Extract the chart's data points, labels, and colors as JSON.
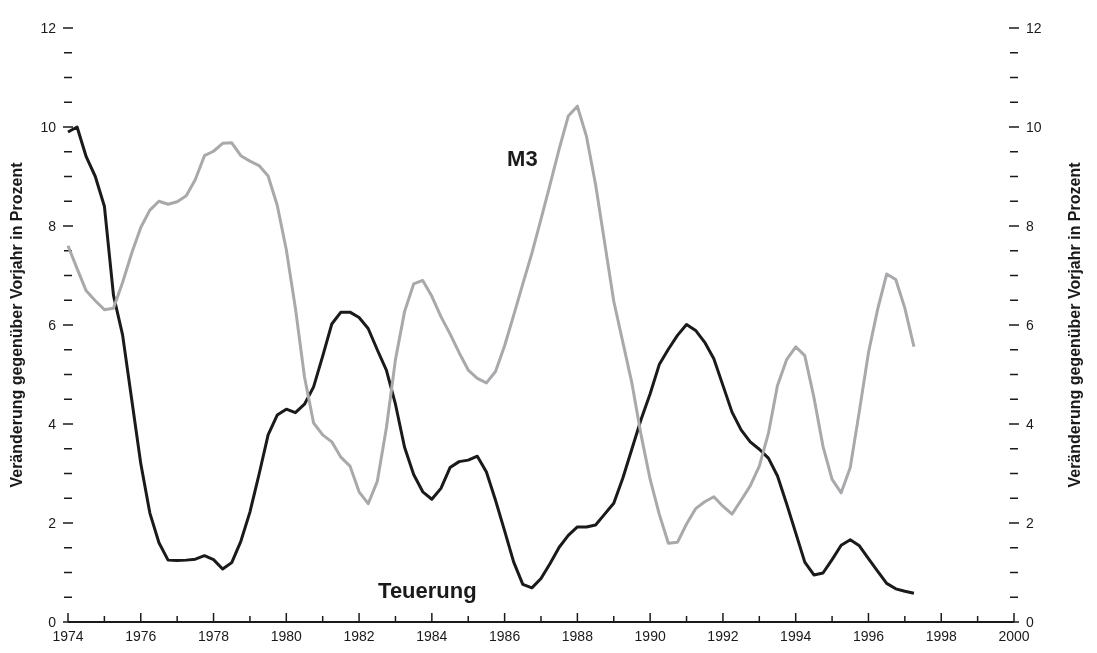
{
  "chart_data": {
    "type": "line",
    "ylabel": "Veränderung gegenüber Vorjahr in Prozent",
    "y2label": "Veränderung gegenüber Vorjahr in Prozent",
    "x": [
      1974,
      1974.25,
      1974.5,
      1974.75,
      1975,
      1975.25,
      1975.5,
      1975.75,
      1976,
      1976.25,
      1976.5,
      1976.75,
      1977,
      1977.25,
      1977.5,
      1977.75,
      1978,
      1978.25,
      1978.5,
      1978.75,
      1979,
      1979.25,
      1979.5,
      1979.75,
      1980,
      1980.25,
      1980.5,
      1980.75,
      1981,
      1981.25,
      1981.5,
      1981.75,
      1982,
      1982.25,
      1982.5,
      1982.75,
      1983,
      1983.25,
      1983.5,
      1983.75,
      1984,
      1984.25,
      1984.5,
      1984.75,
      1985,
      1985.25,
      1985.5,
      1985.75,
      1986,
      1986.25,
      1986.5,
      1986.75,
      1987,
      1987.25,
      1987.5,
      1987.75,
      1988,
      1988.25,
      1988.5,
      1988.75,
      1989,
      1989.25,
      1989.5,
      1989.75,
      1990,
      1990.25,
      1990.5,
      1990.75,
      1991,
      1991.25,
      1991.5,
      1991.75,
      1992,
      1992.25,
      1992.5,
      1992.75,
      1993,
      1993.25,
      1993.5,
      1993.75,
      1994,
      1994.25,
      1994.5,
      1994.75,
      1995,
      1995.25,
      1995.5,
      1995.75,
      1996,
      1996.25,
      1996.5,
      1996.75,
      1997,
      1997.25
    ],
    "series": [
      {
        "name": "Teuerung",
        "color": "#1a1a1a",
        "values": [
          9.9,
          10.0,
          9.4,
          9.0,
          8.4,
          6.6,
          5.8,
          4.5,
          3.2,
          2.2,
          1.6,
          1.25,
          1.24,
          1.25,
          1.27,
          1.34,
          1.26,
          1.07,
          1.2,
          1.63,
          2.22,
          2.98,
          3.78,
          4.18,
          4.3,
          4.23,
          4.4,
          4.75,
          5.37,
          6.02,
          6.26,
          6.26,
          6.15,
          5.93,
          5.5,
          5.09,
          4.4,
          3.53,
          2.98,
          2.63,
          2.48,
          2.7,
          3.12,
          3.24,
          3.27,
          3.35,
          3.03,
          2.46,
          1.84,
          1.21,
          0.76,
          0.69,
          0.88,
          1.18,
          1.51,
          1.75,
          1.92,
          1.92,
          1.96,
          2.18,
          2.4,
          2.91,
          3.5,
          4.09,
          4.61,
          5.2,
          5.51,
          5.79,
          6.01,
          5.89,
          5.65,
          5.32,
          4.78,
          4.24,
          3.88,
          3.64,
          3.49,
          3.31,
          2.95,
          2.39,
          1.8,
          1.21,
          0.95,
          0.99,
          1.26,
          1.55,
          1.66,
          1.54,
          1.28,
          1.03,
          0.78,
          0.67,
          0.62,
          0.58
        ]
      },
      {
        "name": "M3",
        "color": "#a7a9ac",
        "values": [
          7.6,
          7.14,
          6.69,
          6.49,
          6.31,
          6.34,
          6.86,
          7.45,
          7.97,
          8.32,
          8.5,
          8.44,
          8.49,
          8.61,
          8.94,
          9.42,
          9.51,
          9.67,
          9.68,
          9.42,
          9.31,
          9.22,
          9.01,
          8.42,
          7.52,
          6.34,
          4.95,
          4.02,
          3.78,
          3.64,
          3.33,
          3.15,
          2.63,
          2.39,
          2.84,
          3.92,
          5.3,
          6.27,
          6.83,
          6.9,
          6.58,
          6.17,
          5.82,
          5.44,
          5.09,
          4.92,
          4.83,
          5.06,
          5.58,
          6.2,
          6.83,
          7.45,
          8.14,
          8.84,
          9.56,
          10.22,
          10.42,
          9.81,
          8.84,
          7.66,
          6.48,
          5.65,
          4.82,
          3.78,
          2.88,
          2.18,
          1.59,
          1.61,
          1.98,
          2.29,
          2.43,
          2.53,
          2.34,
          2.18,
          2.46,
          2.75,
          3.15,
          3.81,
          4.78,
          5.3,
          5.56,
          5.38,
          4.54,
          3.55,
          2.88,
          2.61,
          3.12,
          4.26,
          5.44,
          6.31,
          7.03,
          6.92,
          6.34,
          5.56
        ]
      }
    ],
    "xlim": [
      1974,
      2000
    ],
    "xticks": [
      1974,
      {
        "value": 1975,
        "label": null
      },
      1976,
      {
        "value": 1977,
        "label": null
      },
      1978,
      {
        "value": 1979,
        "label": null
      },
      1980,
      {
        "value": 1981,
        "label": null
      },
      1982,
      {
        "value": 1983,
        "label": null
      },
      1984,
      {
        "value": 1985,
        "label": null
      },
      1986,
      {
        "value": 1987,
        "label": null
      },
      1988,
      {
        "value": 1989,
        "label": null
      },
      1990,
      {
        "value": 1991,
        "label": null
      },
      1992,
      {
        "value": 1993,
        "label": null
      },
      1994,
      {
        "value": 1995,
        "label": null
      },
      1996,
      {
        "value": 1997,
        "label": null
      },
      1998,
      {
        "value": 1999,
        "label": null
      },
      2000
    ],
    "ylim": [
      0,
      12
    ],
    "yticks": [
      0,
      {
        "value": 0.5,
        "label": null
      },
      {
        "value": 1,
        "label": null
      },
      {
        "value": 1.5,
        "label": null
      },
      2,
      {
        "value": 2.5,
        "label": null
      },
      {
        "value": 3,
        "label": null
      },
      {
        "value": 3.5,
        "label": null
      },
      4,
      {
        "value": 4.5,
        "label": null
      },
      {
        "value": 5,
        "label": null
      },
      {
        "value": 5.5,
        "label": null
      },
      6,
      {
        "value": 6.5,
        "label": null
      },
      {
        "value": 7,
        "label": null
      },
      {
        "value": 7.5,
        "label": null
      },
      8,
      {
        "value": 8.5,
        "label": null
      },
      {
        "value": 9,
        "label": null
      },
      {
        "value": 9.5,
        "label": null
      },
      10,
      {
        "value": 10.5,
        "label": null
      },
      {
        "value": 11,
        "label": null
      },
      {
        "value": 11.5,
        "label": null
      },
      12
    ],
    "y2lim": [
      0,
      12
    ],
    "y2ticks": [
      0,
      {
        "value": 0.5,
        "label": null
      },
      {
        "value": 1,
        "label": null
      },
      {
        "value": 1.5,
        "label": null
      },
      2,
      {
        "value": 2.5,
        "label": null
      },
      {
        "value": 3,
        "label": null
      },
      {
        "value": 3.5,
        "label": null
      },
      4,
      {
        "value": 4.5,
        "label": null
      },
      {
        "value": 5,
        "label": null
      },
      {
        "value": 5.5,
        "label": null
      },
      6,
      {
        "value": 6.5,
        "label": null
      },
      {
        "value": 7,
        "label": null
      },
      {
        "value": 7.5,
        "label": null
      },
      8,
      {
        "value": 8.5,
        "label": null
      },
      {
        "value": 9,
        "label": null
      },
      {
        "value": 9.5,
        "label": null
      },
      10,
      {
        "value": 10.5,
        "label": null
      },
      {
        "value": 11,
        "label": null
      },
      {
        "value": 11.5,
        "label": null
      },
      12
    ],
    "grid": false,
    "legend": false,
    "marker": "none",
    "line_style": "solid"
  }
}
